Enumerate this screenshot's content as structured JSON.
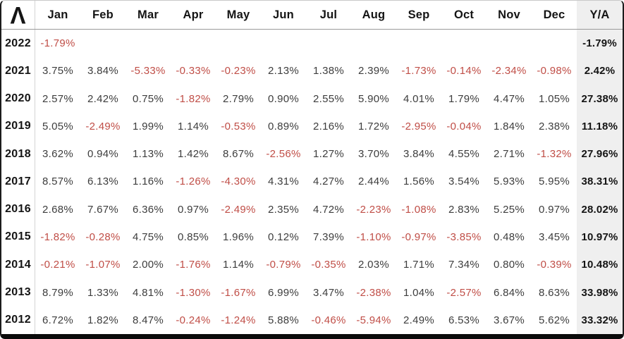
{
  "logo": {
    "glyph": "Λ"
  },
  "colors": {
    "negative": "#c04e47",
    "positive": "#3d3d3d",
    "strong_text": "#141414",
    "ya_column_bg": "#efefef",
    "header_divider": "#9a9a9a",
    "year_divider": "#d4d4d4",
    "frame_border": "#1c1c1c"
  },
  "chart_data": {
    "type": "table",
    "columns": [
      "Jan",
      "Feb",
      "Mar",
      "Apr",
      "May",
      "Jun",
      "Jul",
      "Aug",
      "Sep",
      "Oct",
      "Nov",
      "Dec",
      "Y/A"
    ],
    "rows": [
      {
        "year": "2022",
        "values": [
          "-1.79%",
          "",
          "",
          "",
          "",
          "",
          "",
          "",
          "",
          "",
          "",
          ""
        ],
        "ya": "-1.79%"
      },
      {
        "year": "2021",
        "values": [
          "3.75%",
          "3.84%",
          "-5.33%",
          "-0.33%",
          "-0.23%",
          "2.13%",
          "1.38%",
          "2.39%",
          "-1.73%",
          "-0.14%",
          "-2.34%",
          "-0.98%"
        ],
        "ya": "2.42%"
      },
      {
        "year": "2020",
        "values": [
          "2.57%",
          "2.42%",
          "0.75%",
          "-1.82%",
          "2.79%",
          "0.90%",
          "2.55%",
          "5.90%",
          "4.01%",
          "1.79%",
          "4.47%",
          "1.05%"
        ],
        "ya": "27.38%"
      },
      {
        "year": "2019",
        "values": [
          "5.05%",
          "-2.49%",
          "1.99%",
          "1.14%",
          "-0.53%",
          "0.89%",
          "2.16%",
          "1.72%",
          "-2.95%",
          "-0.04%",
          "1.84%",
          "2.38%"
        ],
        "ya": "11.18%"
      },
      {
        "year": "2018",
        "values": [
          "3.62%",
          "0.94%",
          "1.13%",
          "1.42%",
          "8.67%",
          "-2.56%",
          "1.27%",
          "3.70%",
          "3.84%",
          "4.55%",
          "2.71%",
          "-1.32%"
        ],
        "ya": "27.96%"
      },
      {
        "year": "2017",
        "values": [
          "8.57%",
          "6.13%",
          "1.16%",
          "-1.26%",
          "-4.30%",
          "4.31%",
          "4.27%",
          "2.44%",
          "1.56%",
          "3.54%",
          "5.93%",
          "5.95%"
        ],
        "ya": "38.31%"
      },
      {
        "year": "2016",
        "values": [
          "2.68%",
          "7.67%",
          "6.36%",
          "0.97%",
          "-2.49%",
          "2.35%",
          "4.72%",
          "-2.23%",
          "-1.08%",
          "2.83%",
          "5.25%",
          "0.97%"
        ],
        "ya": "28.02%"
      },
      {
        "year": "2015",
        "values": [
          "-1.82%",
          "-0.28%",
          "4.75%",
          "0.85%",
          "1.96%",
          "0.12%",
          "7.39%",
          "-1.10%",
          "-0.97%",
          "-3.85%",
          "0.48%",
          "3.45%"
        ],
        "ya": "10.97%"
      },
      {
        "year": "2014",
        "values": [
          "-0.21%",
          "-1.07%",
          "2.00%",
          "-1.76%",
          "1.14%",
          "-0.79%",
          "-0.35%",
          "2.03%",
          "1.71%",
          "7.34%",
          "0.80%",
          "-0.39%"
        ],
        "ya": "10.48%"
      },
      {
        "year": "2013",
        "values": [
          "8.79%",
          "1.33%",
          "4.81%",
          "-1.30%",
          "-1.67%",
          "6.99%",
          "3.47%",
          "-2.38%",
          "1.04%",
          "-2.57%",
          "6.84%",
          "8.63%"
        ],
        "ya": "33.98%"
      },
      {
        "year": "2012",
        "values": [
          "6.72%",
          "1.82%",
          "8.47%",
          "-0.24%",
          "-1.24%",
          "5.88%",
          "-0.46%",
          "-5.94%",
          "2.49%",
          "6.53%",
          "3.67%",
          "5.62%"
        ],
        "ya": "33.32%"
      }
    ]
  }
}
